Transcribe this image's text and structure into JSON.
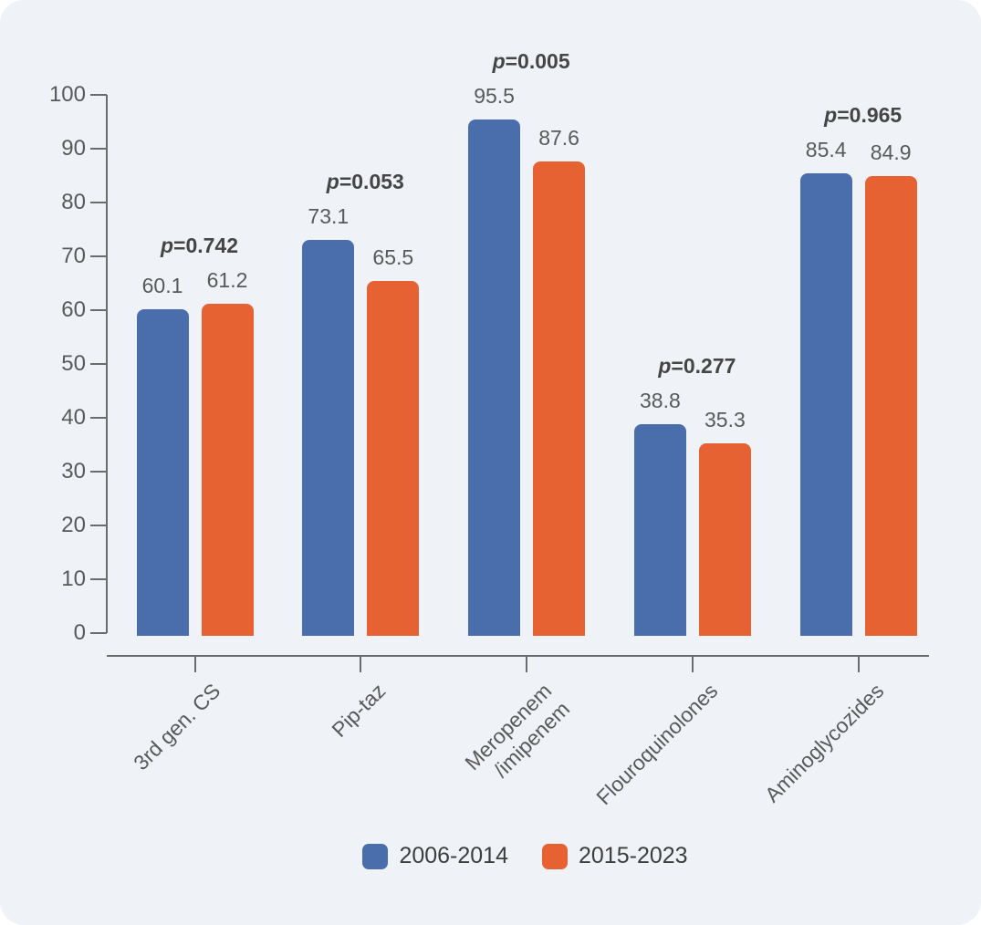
{
  "chart_data": {
    "type": "bar",
    "title": "",
    "xlabel": "",
    "ylabel": "",
    "categories": [
      "3rd gen. CS",
      "Pip-taz",
      "Meropenem\n/imipenem",
      "Flouroquinolones",
      "Aminoglycozides"
    ],
    "series": [
      {
        "name": "2006-2014",
        "color": "#4a6dac",
        "values": [
          60.1,
          73.1,
          95.5,
          38.8,
          85.4
        ]
      },
      {
        "name": "2015-2023",
        "color": "#e66233",
        "values": [
          61.2,
          65.5,
          87.6,
          35.3,
          84.9
        ]
      }
    ],
    "annotations": {
      "p_values": [
        "p=0.742",
        "p=0.053",
        "p=0.005",
        "p=0.277",
        "p=0.965"
      ]
    },
    "ylim": [
      0,
      100
    ],
    "ytick_step": 10,
    "grid": false,
    "legend_position": "bottom"
  },
  "colors": {
    "panel_background": "#eff3f8",
    "axis": "#6b6b6b",
    "tick_text": "#595959",
    "value_text": "#595959",
    "p_text": "#454545",
    "legend_text": "#3d3d3d"
  }
}
